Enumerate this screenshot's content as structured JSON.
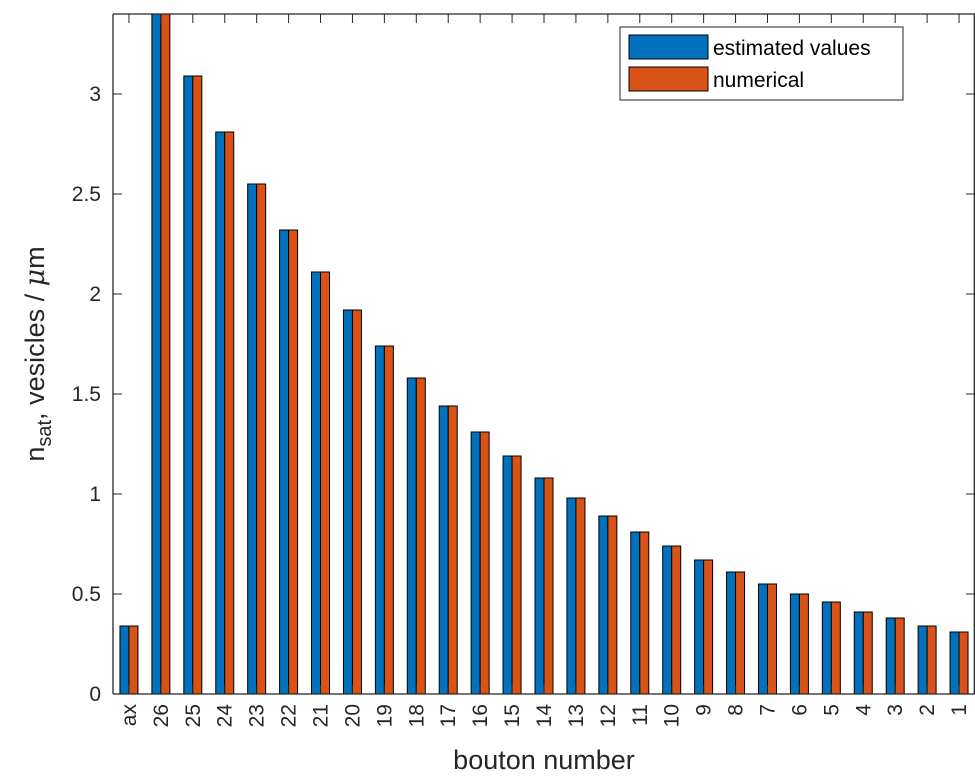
{
  "chart_data": {
    "type": "bar",
    "xlabel": "bouton number",
    "ylabel_main": "n",
    "ylabel_sub": "sat",
    "ylabel_rest": ",  vesicles / ",
    "ylabel_mu": "μ",
    "ylabel_unit": "m",
    "categories": [
      "ax",
      "26",
      "25",
      "24",
      "23",
      "22",
      "21",
      "20",
      "19",
      "18",
      "17",
      "16",
      "15",
      "14",
      "13",
      "12",
      "11",
      "10",
      "9",
      "8",
      "7",
      "6",
      "5",
      "4",
      "3",
      "2",
      "1"
    ],
    "yticks": [
      "0",
      "0.5",
      "1",
      "1.5",
      "2",
      "2.5",
      "3"
    ],
    "ytick_values": [
      0,
      0.5,
      1,
      1.5,
      2,
      2.5,
      3
    ],
    "ylim": [
      0,
      3.4
    ],
    "series": [
      {
        "name": "estimated values",
        "color": "#0072BD",
        "values": [
          0.34,
          3.4,
          3.09,
          2.81,
          2.55,
          2.32,
          2.11,
          1.92,
          1.74,
          1.58,
          1.44,
          1.31,
          1.19,
          1.08,
          0.98,
          0.89,
          0.81,
          0.74,
          0.67,
          0.61,
          0.55,
          0.5,
          0.46,
          0.41,
          0.38,
          0.34,
          0.31
        ]
      },
      {
        "name": "numerical",
        "color": "#D95319",
        "values": [
          0.34,
          3.4,
          3.09,
          2.81,
          2.55,
          2.32,
          2.11,
          1.92,
          1.74,
          1.58,
          1.44,
          1.31,
          1.19,
          1.08,
          0.98,
          0.89,
          0.81,
          0.74,
          0.67,
          0.61,
          0.55,
          0.5,
          0.46,
          0.41,
          0.38,
          0.34,
          0.31
        ]
      }
    ],
    "legend": {
      "position": "top-right",
      "entries": [
        "estimated values",
        "numerical"
      ]
    },
    "grid": false
  }
}
